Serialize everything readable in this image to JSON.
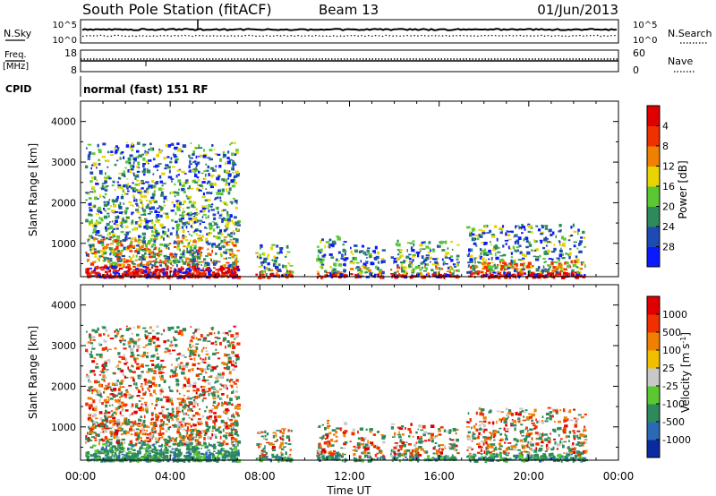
{
  "header": {
    "station": "South Pole Station (fitACF)",
    "beam": "Beam 13",
    "date": "01/Jun/2013"
  },
  "top_panels": {
    "nsky_label": "N.Sky",
    "nsky_ticks": [
      "10^5",
      "10^0"
    ],
    "nsearch_label": "N.Search",
    "nsearch_ticks": [
      "10^5",
      "10^0"
    ],
    "freq_label_1": "Freq.",
    "freq_label_2": "[MHz]",
    "freq_ticks": [
      "18",
      "8"
    ],
    "nave_label": "Nave",
    "nave_ticks": [
      "60",
      "0"
    ],
    "cpid_label": "CPID",
    "cpid_text": "normal (fast) 151 RF"
  },
  "chart_data": [
    {
      "type": "heatmap",
      "name": "power-panel",
      "ylabel": "Slant Range [km]",
      "ylim": [
        180,
        4500
      ],
      "yticks": [
        1000,
        2000,
        3000,
        4000
      ],
      "xlim": [
        0,
        24
      ],
      "colorbar": {
        "label": "Power [dB]",
        "tick_labels": [
          "4",
          "8",
          "12",
          "16",
          "20",
          "24",
          "28"
        ],
        "colors": [
          "#0a1aff",
          "#1e4ab4",
          "#2e8a5a",
          "#5ac832",
          "#e8d400",
          "#f08000",
          "#f03000",
          "#e00000"
        ]
      },
      "echo_regions": [
        {
          "x0": 0.2,
          "x1": 7.0,
          "y0": 200,
          "y1": 3500
        },
        {
          "x0": 7.8,
          "x1": 9.4,
          "y0": 200,
          "y1": 1000
        },
        {
          "x0": 10.5,
          "x1": 11.8,
          "y0": 200,
          "y1": 1200
        },
        {
          "x0": 12.0,
          "x1": 13.5,
          "y0": 200,
          "y1": 1000
        },
        {
          "x0": 13.8,
          "x1": 16.8,
          "y0": 200,
          "y1": 1100
        },
        {
          "x0": 17.2,
          "x1": 22.5,
          "y0": 200,
          "y1": 1500
        }
      ]
    },
    {
      "type": "heatmap",
      "name": "velocity-panel",
      "ylabel": "Slant Range [km]",
      "ylim": [
        180,
        4500
      ],
      "yticks": [
        1000,
        2000,
        3000,
        4000
      ],
      "xlim": [
        0,
        24
      ],
      "xlabel": "Time UT",
      "xticks": [
        0,
        4,
        8,
        12,
        16,
        20,
        24
      ],
      "xtick_labels": [
        "00:00",
        "04:00",
        "08:00",
        "12:00",
        "16:00",
        "20:00",
        "00:00"
      ],
      "colorbar": {
        "label": "Velocity [m s",
        "label_sup": "-1",
        "label_end": "]",
        "tick_labels": [
          "1000",
          "500",
          "100",
          "25",
          "-25",
          "-100",
          "-500",
          "-1000"
        ],
        "colors": [
          "#0a2aa0",
          "#2a6ab4",
          "#2e8a5a",
          "#5ac832",
          "#c8c8c8",
          "#f0c000",
          "#f08000",
          "#f03000",
          "#e00000"
        ]
      },
      "echo_regions": [
        {
          "x0": 0.2,
          "x1": 7.0,
          "y0": 200,
          "y1": 3500
        },
        {
          "x0": 7.8,
          "x1": 9.4,
          "y0": 200,
          "y1": 1000
        },
        {
          "x0": 10.5,
          "x1": 11.8,
          "y0": 200,
          "y1": 1200
        },
        {
          "x0": 12.0,
          "x1": 13.5,
          "y0": 200,
          "y1": 1000
        },
        {
          "x0": 13.8,
          "x1": 16.8,
          "y0": 200,
          "y1": 1100
        },
        {
          "x0": 17.2,
          "x1": 22.5,
          "y0": 200,
          "y1": 1500
        }
      ]
    }
  ]
}
